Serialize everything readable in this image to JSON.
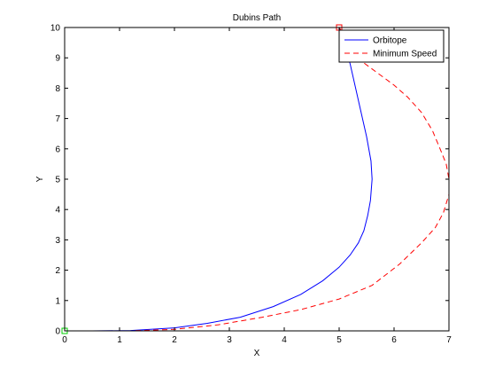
{
  "chart_data": {
    "type": "line",
    "title": "Dubins Path",
    "xlabel": "X",
    "ylabel": "Y",
    "xlim": [
      0,
      7
    ],
    "ylim": [
      0,
      10
    ],
    "xticks": [
      0,
      1,
      2,
      3,
      4,
      5,
      6,
      7
    ],
    "yticks": [
      0,
      1,
      2,
      3,
      4,
      5,
      6,
      7,
      8,
      9,
      10
    ],
    "xtick_labels": [
      "0",
      "1",
      "2",
      "3",
      "4",
      "5",
      "6",
      "7"
    ],
    "ytick_labels": [
      "0",
      "1",
      "2",
      "3",
      "4",
      "5",
      "6",
      "7",
      "8",
      "9",
      "10"
    ],
    "grid": false,
    "legend_position": "top-right",
    "series": [
      {
        "name": "Orbitope",
        "color": "#0000ff",
        "dash": "solid",
        "x": [
          0,
          0.5,
          1.2,
          2.0,
          2.6,
          3.2,
          3.8,
          4.3,
          4.7,
          5.0,
          5.2,
          5.35,
          5.45,
          5.52,
          5.57,
          5.6,
          5.58,
          5.5,
          5.4,
          5.3,
          5.2,
          5.1,
          5.05,
          5.0
        ],
        "y": [
          0,
          0,
          0.01,
          0.1,
          0.25,
          0.45,
          0.8,
          1.2,
          1.65,
          2.1,
          2.5,
          2.9,
          3.3,
          3.8,
          4.3,
          5.0,
          5.6,
          6.4,
          7.2,
          8.0,
          8.8,
          9.4,
          9.75,
          10.0
        ]
      },
      {
        "name": "Minimum Speed",
        "color": "#ff0000",
        "dash": "dashed",
        "x": [
          0,
          0.5,
          1.2,
          2.0,
          2.8,
          3.6,
          4.3,
          5.0,
          5.6,
          6.1,
          6.5,
          6.75,
          6.9,
          7.0,
          7.0,
          6.95,
          6.85,
          6.7,
          6.5,
          6.25,
          6.0,
          5.7,
          5.4,
          5.15,
          5.0
        ],
        "y": [
          0,
          0,
          0,
          0.05,
          0.2,
          0.45,
          0.7,
          1.05,
          1.5,
          2.2,
          2.9,
          3.4,
          3.9,
          4.5,
          5.0,
          5.5,
          5.95,
          6.6,
          7.2,
          7.7,
          8.1,
          8.5,
          8.9,
          9.6,
          10.0
        ]
      }
    ],
    "markers": [
      {
        "name": "start",
        "x": 0,
        "y": 0,
        "shape": "square",
        "color": "#00cc00"
      },
      {
        "name": "goal",
        "x": 5,
        "y": 10,
        "shape": "square",
        "color": "#ff0000"
      }
    ]
  }
}
